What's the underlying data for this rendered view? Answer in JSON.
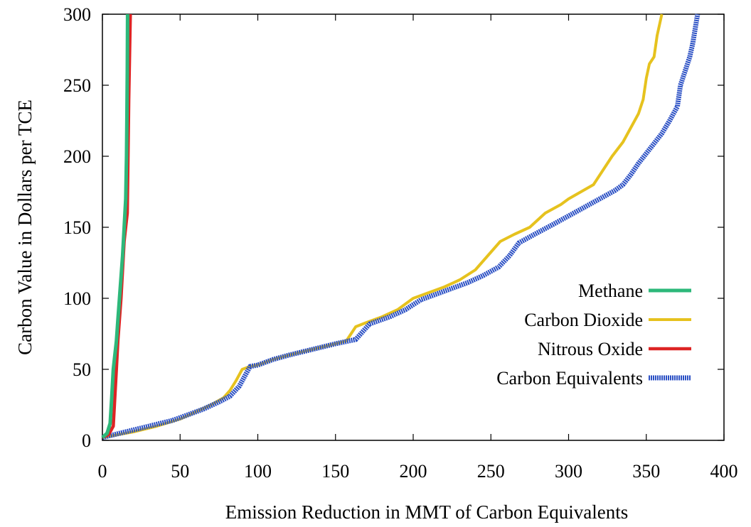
{
  "chart_data": {
    "type": "line",
    "title": "",
    "xlabel": "Emission Reduction in MMT of Carbon Equivalents",
    "ylabel": "Carbon Value in Dollars per TCE",
    "xlim": [
      0,
      400
    ],
    "ylim": [
      0,
      300
    ],
    "xticks": [
      0,
      50,
      100,
      150,
      200,
      250,
      300,
      350,
      400
    ],
    "yticks": [
      0,
      50,
      100,
      150,
      200,
      250,
      300
    ],
    "grid": false,
    "legend_position": "right",
    "series": [
      {
        "name": "Methane",
        "color": "#2db87a",
        "points": [
          [
            0,
            2
          ],
          [
            3,
            5
          ],
          [
            5,
            12
          ],
          [
            6,
            30
          ],
          [
            7,
            50
          ],
          [
            8,
            60
          ],
          [
            9,
            70
          ],
          [
            10,
            85
          ],
          [
            11,
            100
          ],
          [
            12,
            115
          ],
          [
            13,
            130
          ],
          [
            14,
            150
          ],
          [
            15,
            170
          ],
          [
            15.5,
            200
          ],
          [
            15.8,
            230
          ],
          [
            16,
            260
          ],
          [
            16.2,
            300
          ]
        ]
      },
      {
        "name": "Carbon Dioxide",
        "color": "#e6c21e",
        "points": [
          [
            0,
            2
          ],
          [
            10,
            4
          ],
          [
            20,
            6
          ],
          [
            35,
            10
          ],
          [
            50,
            15
          ],
          [
            60,
            20
          ],
          [
            70,
            25
          ],
          [
            78,
            30
          ],
          [
            82,
            35
          ],
          [
            86,
            42
          ],
          [
            90,
            50
          ],
          [
            95,
            52
          ],
          [
            100,
            53
          ],
          [
            110,
            57
          ],
          [
            120,
            60
          ],
          [
            135,
            64
          ],
          [
            150,
            68
          ],
          [
            157,
            70
          ],
          [
            163,
            80
          ],
          [
            170,
            83
          ],
          [
            180,
            87
          ],
          [
            190,
            92
          ],
          [
            200,
            100
          ],
          [
            210,
            104
          ],
          [
            220,
            108
          ],
          [
            230,
            113
          ],
          [
            240,
            120
          ],
          [
            248,
            130
          ],
          [
            256,
            140
          ],
          [
            265,
            145
          ],
          [
            275,
            150
          ],
          [
            285,
            160
          ],
          [
            295,
            166
          ],
          [
            300,
            170
          ],
          [
            308,
            175
          ],
          [
            316,
            180
          ],
          [
            322,
            190
          ],
          [
            328,
            200
          ],
          [
            335,
            210
          ],
          [
            340,
            220
          ],
          [
            345,
            230
          ],
          [
            348,
            240
          ],
          [
            350,
            255
          ],
          [
            352,
            265
          ],
          [
            355,
            270
          ],
          [
            357,
            285
          ],
          [
            360,
            300
          ]
        ]
      },
      {
        "name": "Nitrous Oxide",
        "color": "#dd2424",
        "points": [
          [
            0,
            2
          ],
          [
            4,
            4
          ],
          [
            7,
            10
          ],
          [
            8,
            30
          ],
          [
            9,
            50
          ],
          [
            10,
            70
          ],
          [
            12,
            100
          ],
          [
            13,
            120
          ],
          [
            14,
            140
          ],
          [
            15,
            150
          ],
          [
            16,
            160
          ],
          [
            16.5,
            200
          ],
          [
            17,
            240
          ],
          [
            17.5,
            270
          ],
          [
            18,
            300
          ]
        ]
      },
      {
        "name": "Carbon Equivalents",
        "color": "#2a4fc4",
        "points": [
          [
            0,
            2
          ],
          [
            15,
            6
          ],
          [
            30,
            10
          ],
          [
            45,
            14
          ],
          [
            55,
            18
          ],
          [
            65,
            22
          ],
          [
            75,
            27
          ],
          [
            82,
            31
          ],
          [
            88,
            38
          ],
          [
            92,
            46
          ],
          [
            95,
            52
          ],
          [
            100,
            53
          ],
          [
            110,
            57
          ],
          [
            120,
            60
          ],
          [
            135,
            64
          ],
          [
            150,
            68
          ],
          [
            163,
            71
          ],
          [
            172,
            82
          ],
          [
            185,
            87
          ],
          [
            195,
            92
          ],
          [
            205,
            99
          ],
          [
            215,
            103
          ],
          [
            225,
            107
          ],
          [
            235,
            111
          ],
          [
            245,
            116
          ],
          [
            255,
            122
          ],
          [
            262,
            130
          ],
          [
            268,
            139
          ],
          [
            278,
            145
          ],
          [
            290,
            152
          ],
          [
            300,
            158
          ],
          [
            310,
            164
          ],
          [
            320,
            170
          ],
          [
            330,
            176
          ],
          [
            335,
            180
          ],
          [
            340,
            187
          ],
          [
            345,
            195
          ],
          [
            350,
            202
          ],
          [
            355,
            209
          ],
          [
            360,
            216
          ],
          [
            365,
            225
          ],
          [
            370,
            235
          ],
          [
            372,
            250
          ],
          [
            375,
            260
          ],
          [
            378,
            270
          ],
          [
            380,
            280
          ],
          [
            383,
            300
          ]
        ]
      }
    ]
  }
}
